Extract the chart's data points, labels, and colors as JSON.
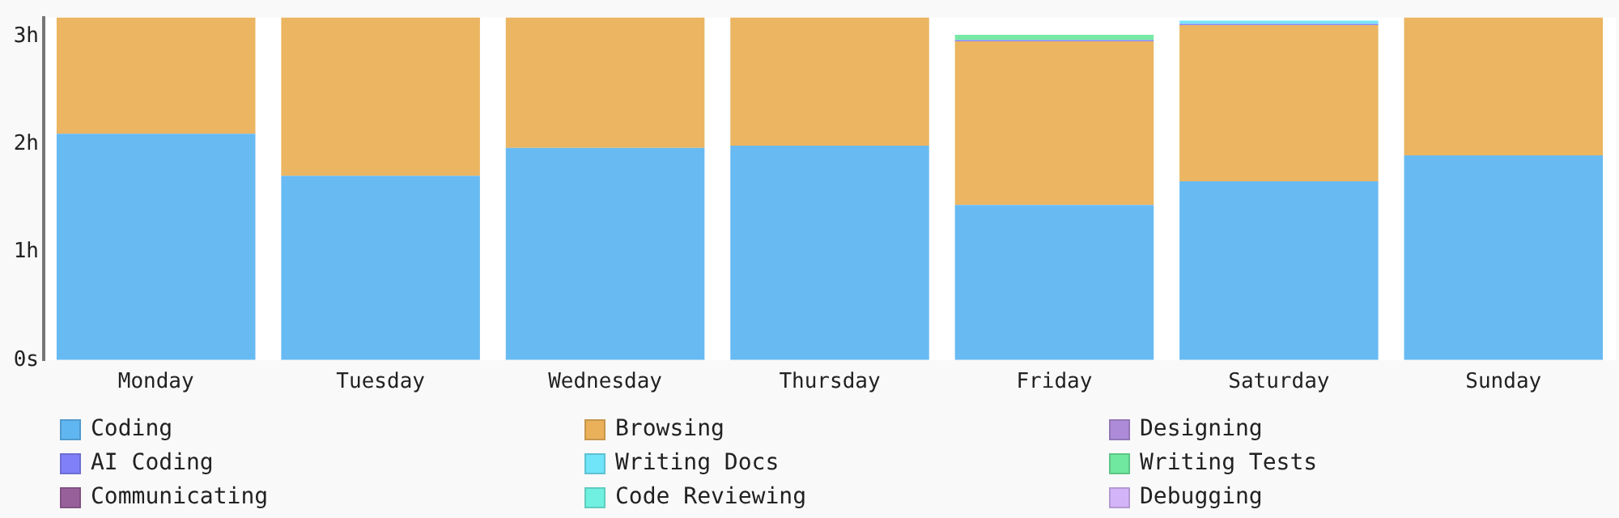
{
  "chart_data": {
    "type": "bar",
    "stacked": true,
    "categories": [
      "Monday",
      "Tuesday",
      "Wednesday",
      "Thursday",
      "Friday",
      "Saturday",
      "Sunday"
    ],
    "ylim": [
      0,
      3.18
    ],
    "yticks": [
      {
        "value": 0,
        "label": "0s"
      },
      {
        "value": 1,
        "label": "1h"
      },
      {
        "value": 2,
        "label": "2h"
      },
      {
        "value": 3,
        "label": "3h"
      }
    ],
    "grid": false,
    "legend": "bottom",
    "series": [
      {
        "name": "Coding",
        "color": "#60b6f1",
        "values": [
          2.1,
          1.71,
          1.97,
          1.99,
          1.44,
          1.66,
          1.9
        ]
      },
      {
        "name": "Browsing",
        "color": "#eab15a",
        "values": [
          1.08,
          1.47,
          1.21,
          1.19,
          1.52,
          1.45,
          1.28
        ]
      },
      {
        "name": "Designing",
        "color": "#ad8bd8",
        "values": [
          0,
          0,
          0,
          0,
          0,
          0,
          0
        ]
      },
      {
        "name": "AI Coding",
        "color": "#8080f8",
        "values": [
          0,
          0,
          0,
          0,
          0.01,
          0.01,
          0
        ]
      },
      {
        "name": "Writing Docs",
        "color": "#70e4f8",
        "values": [
          0,
          0,
          0,
          0,
          0,
          0.03,
          0
        ]
      },
      {
        "name": "Writing Tests",
        "color": "#70e8a0",
        "values": [
          0,
          0,
          0,
          0,
          0.05,
          0,
          0
        ]
      },
      {
        "name": "Communicating",
        "color": "#98609a",
        "values": [
          0,
          0,
          0,
          0,
          0,
          0,
          0
        ]
      },
      {
        "name": "Code Reviewing",
        "color": "#70f0e0",
        "values": [
          0,
          0,
          0,
          0,
          0,
          0,
          0
        ]
      },
      {
        "name": "Debugging",
        "color": "#d4b4f8",
        "values": [
          0,
          0,
          0,
          0,
          0,
          0,
          0
        ]
      }
    ]
  }
}
